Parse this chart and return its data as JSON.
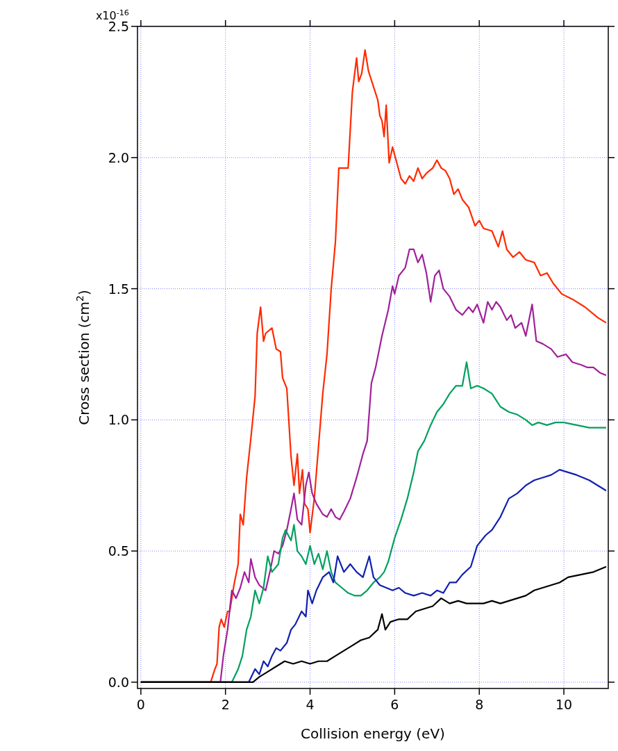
{
  "chart_data": {
    "type": "line",
    "xlabel": "Collision energy (eV)",
    "ylabel": "Cross section (cm$^{2}$)",
    "xlim": [
      -0.08,
      11.05
    ],
    "ylim": [
      -0.024,
      2.5
    ],
    "xticks": [
      0,
      2,
      4,
      6,
      8,
      10
    ],
    "yticks": [
      {
        "value": 0,
        "label": "0.0"
      },
      {
        "value": 0.5,
        "label": "0.5"
      },
      {
        "value": 1,
        "label": "1.0"
      },
      {
        "value": 1.5,
        "label": "1.5"
      },
      {
        "value": 2,
        "label": "2.0"
      },
      {
        "value": 2.5,
        "label": "2.5"
      }
    ],
    "annotations": [
      "x10$^{-16}$"
    ],
    "grid": true,
    "line_style": "solid",
    "series": [
      {
        "color": "#ff2a00",
        "x": [
          0,
          1.65,
          1.75,
          1.8,
          1.85,
          1.9,
          1.97,
          2.05,
          2.1,
          2.2,
          2.3,
          2.35,
          2.42,
          2.5,
          2.6,
          2.7,
          2.75,
          2.83,
          2.9,
          2.95,
          3.1,
          3.2,
          3.3,
          3.35,
          3.45,
          3.55,
          3.62,
          3.7,
          3.75,
          3.82,
          3.87,
          3.95,
          4.0,
          4.1,
          4.2,
          4.3,
          4.4,
          4.5,
          4.6,
          4.68,
          4.8,
          4.9,
          5.0,
          5.1,
          5.15,
          5.22,
          5.3,
          5.38,
          5.5,
          5.6,
          5.65,
          5.7,
          5.75,
          5.8,
          5.87,
          5.95,
          6.05,
          6.15,
          6.25,
          6.35,
          6.45,
          6.55,
          6.65,
          6.75,
          6.9,
          7.0,
          7.1,
          7.2,
          7.3,
          7.4,
          7.5,
          7.6,
          7.75,
          7.9,
          8.0,
          8.1,
          8.3,
          8.45,
          8.55,
          8.65,
          8.8,
          8.95,
          9.1,
          9.3,
          9.45,
          9.6,
          9.75,
          9.95,
          10.2,
          10.5,
          10.8,
          11.0
        ],
        "values": [
          0,
          0,
          0.05,
          0.07,
          0.21,
          0.24,
          0.21,
          0.27,
          0.27,
          0.37,
          0.45,
          0.64,
          0.6,
          0.78,
          0.93,
          1.09,
          1.33,
          1.43,
          1.3,
          1.33,
          1.35,
          1.27,
          1.26,
          1.16,
          1.12,
          0.86,
          0.75,
          0.87,
          0.72,
          0.81,
          0.68,
          0.66,
          0.57,
          0.7,
          0.9,
          1.1,
          1.25,
          1.5,
          1.68,
          1.96,
          1.96,
          1.96,
          2.25,
          2.38,
          2.29,
          2.32,
          2.41,
          2.33,
          2.27,
          2.22,
          2.16,
          2.14,
          2.08,
          2.2,
          1.98,
          2.04,
          1.98,
          1.92,
          1.9,
          1.93,
          1.91,
          1.96,
          1.92,
          1.94,
          1.96,
          1.99,
          1.96,
          1.95,
          1.92,
          1.86,
          1.88,
          1.84,
          1.81,
          1.74,
          1.76,
          1.73,
          1.72,
          1.66,
          1.72,
          1.65,
          1.62,
          1.64,
          1.61,
          1.6,
          1.55,
          1.56,
          1.52,
          1.48,
          1.46,
          1.43,
          1.39,
          1.37
        ]
      },
      {
        "color": "#a0209a",
        "x": [
          0,
          1.88,
          1.95,
          2.05,
          2.15,
          2.25,
          2.35,
          2.45,
          2.55,
          2.6,
          2.7,
          2.8,
          2.95,
          3.05,
          3.15,
          3.25,
          3.35,
          3.45,
          3.55,
          3.62,
          3.7,
          3.8,
          3.9,
          3.97,
          4.05,
          4.15,
          4.3,
          4.4,
          4.5,
          4.6,
          4.7,
          4.8,
          4.95,
          5.1,
          5.25,
          5.35,
          5.45,
          5.55,
          5.7,
          5.85,
          5.95,
          6.0,
          6.1,
          6.25,
          6.35,
          6.45,
          6.55,
          6.65,
          6.75,
          6.85,
          6.95,
          7.05,
          7.15,
          7.3,
          7.45,
          7.6,
          7.75,
          7.85,
          7.95,
          8.1,
          8.2,
          8.3,
          8.4,
          8.5,
          8.65,
          8.75,
          8.85,
          9.0,
          9.1,
          9.25,
          9.35,
          9.5,
          9.7,
          9.85,
          10.05,
          10.2,
          10.4,
          10.55,
          10.7,
          10.85,
          11.0
        ],
        "values": [
          0,
          0,
          0.1,
          0.2,
          0.35,
          0.32,
          0.36,
          0.42,
          0.38,
          0.47,
          0.4,
          0.37,
          0.35,
          0.42,
          0.5,
          0.49,
          0.52,
          0.58,
          0.66,
          0.72,
          0.62,
          0.6,
          0.75,
          0.8,
          0.72,
          0.68,
          0.64,
          0.63,
          0.66,
          0.63,
          0.62,
          0.65,
          0.7,
          0.78,
          0.87,
          0.92,
          1.14,
          1.2,
          1.32,
          1.42,
          1.51,
          1.48,
          1.55,
          1.58,
          1.65,
          1.65,
          1.6,
          1.63,
          1.56,
          1.45,
          1.55,
          1.57,
          1.5,
          1.47,
          1.42,
          1.4,
          1.43,
          1.41,
          1.44,
          1.37,
          1.45,
          1.42,
          1.45,
          1.43,
          1.38,
          1.4,
          1.35,
          1.37,
          1.32,
          1.44,
          1.3,
          1.29,
          1.27,
          1.24,
          1.25,
          1.22,
          1.21,
          1.2,
          1.2,
          1.18,
          1.17
        ]
      },
      {
        "color": "#00a060",
        "x": [
          0,
          2.15,
          2.3,
          2.4,
          2.5,
          2.6,
          2.7,
          2.8,
          2.9,
          3.0,
          3.1,
          3.25,
          3.35,
          3.42,
          3.55,
          3.62,
          3.7,
          3.8,
          3.9,
          4.0,
          4.1,
          4.2,
          4.3,
          4.4,
          4.5,
          4.6,
          4.75,
          4.9,
          5.05,
          5.2,
          5.35,
          5.5,
          5.65,
          5.75,
          5.85,
          6.0,
          6.15,
          6.3,
          6.45,
          6.55,
          6.7,
          6.85,
          7.0,
          7.15,
          7.3,
          7.45,
          7.6,
          7.7,
          7.8,
          7.95,
          8.1,
          8.3,
          8.5,
          8.7,
          8.9,
          9.1,
          9.25,
          9.4,
          9.6,
          9.8,
          10.0,
          10.3,
          10.6,
          11.0
        ],
        "values": [
          0,
          0,
          0.05,
          0.1,
          0.2,
          0.25,
          0.35,
          0.3,
          0.36,
          0.48,
          0.42,
          0.45,
          0.55,
          0.58,
          0.54,
          0.6,
          0.5,
          0.48,
          0.45,
          0.52,
          0.45,
          0.49,
          0.43,
          0.5,
          0.42,
          0.38,
          0.36,
          0.34,
          0.33,
          0.33,
          0.35,
          0.38,
          0.4,
          0.42,
          0.46,
          0.55,
          0.62,
          0.7,
          0.8,
          0.88,
          0.92,
          0.98,
          1.03,
          1.06,
          1.1,
          1.13,
          1.13,
          1.22,
          1.12,
          1.13,
          1.12,
          1.1,
          1.05,
          1.03,
          1.02,
          1.0,
          0.98,
          0.99,
          0.98,
          0.99,
          0.99,
          0.98,
          0.97,
          0.97
        ]
      },
      {
        "color": "#1020b0",
        "x": [
          0,
          2.55,
          2.7,
          2.8,
          2.9,
          3.0,
          3.1,
          3.2,
          3.3,
          3.45,
          3.55,
          3.65,
          3.8,
          3.9,
          3.95,
          4.05,
          4.15,
          4.3,
          4.45,
          4.55,
          4.65,
          4.8,
          4.95,
          5.1,
          5.25,
          5.4,
          5.5,
          5.65,
          5.8,
          5.95,
          6.1,
          6.25,
          6.45,
          6.65,
          6.85,
          7.0,
          7.15,
          7.3,
          7.45,
          7.6,
          7.8,
          7.95,
          8.15,
          8.3,
          8.5,
          8.7,
          8.9,
          9.1,
          9.3,
          9.5,
          9.7,
          9.9,
          10.1,
          10.3,
          10.6,
          10.8,
          11.0
        ],
        "values": [
          0,
          0,
          0.05,
          0.03,
          0.08,
          0.06,
          0.1,
          0.13,
          0.12,
          0.15,
          0.2,
          0.22,
          0.27,
          0.25,
          0.35,
          0.3,
          0.35,
          0.4,
          0.42,
          0.38,
          0.48,
          0.42,
          0.45,
          0.42,
          0.4,
          0.48,
          0.4,
          0.37,
          0.36,
          0.35,
          0.36,
          0.34,
          0.33,
          0.34,
          0.33,
          0.35,
          0.34,
          0.38,
          0.38,
          0.41,
          0.44,
          0.52,
          0.56,
          0.58,
          0.63,
          0.7,
          0.72,
          0.75,
          0.77,
          0.78,
          0.79,
          0.81,
          0.8,
          0.79,
          0.77,
          0.75,
          0.73
        ]
      },
      {
        "color": "#000000",
        "x": [
          0,
          2.65,
          2.8,
          3.0,
          3.2,
          3.4,
          3.6,
          3.8,
          4.0,
          4.2,
          4.4,
          4.6,
          4.8,
          5.0,
          5.2,
          5.4,
          5.6,
          5.7,
          5.78,
          5.9,
          6.1,
          6.3,
          6.5,
          6.7,
          6.9,
          7.1,
          7.3,
          7.5,
          7.7,
          7.9,
          8.1,
          8.3,
          8.5,
          8.7,
          8.9,
          9.1,
          9.3,
          9.5,
          9.7,
          9.9,
          10.1,
          10.4,
          10.7,
          11.0
        ],
        "values": [
          0,
          0,
          0.02,
          0.04,
          0.06,
          0.08,
          0.07,
          0.08,
          0.07,
          0.08,
          0.08,
          0.1,
          0.12,
          0.14,
          0.16,
          0.17,
          0.2,
          0.26,
          0.2,
          0.23,
          0.24,
          0.24,
          0.27,
          0.28,
          0.29,
          0.32,
          0.3,
          0.31,
          0.3,
          0.3,
          0.3,
          0.31,
          0.3,
          0.31,
          0.32,
          0.33,
          0.35,
          0.36,
          0.37,
          0.38,
          0.4,
          0.41,
          0.42,
          0.44
        ]
      }
    ]
  }
}
